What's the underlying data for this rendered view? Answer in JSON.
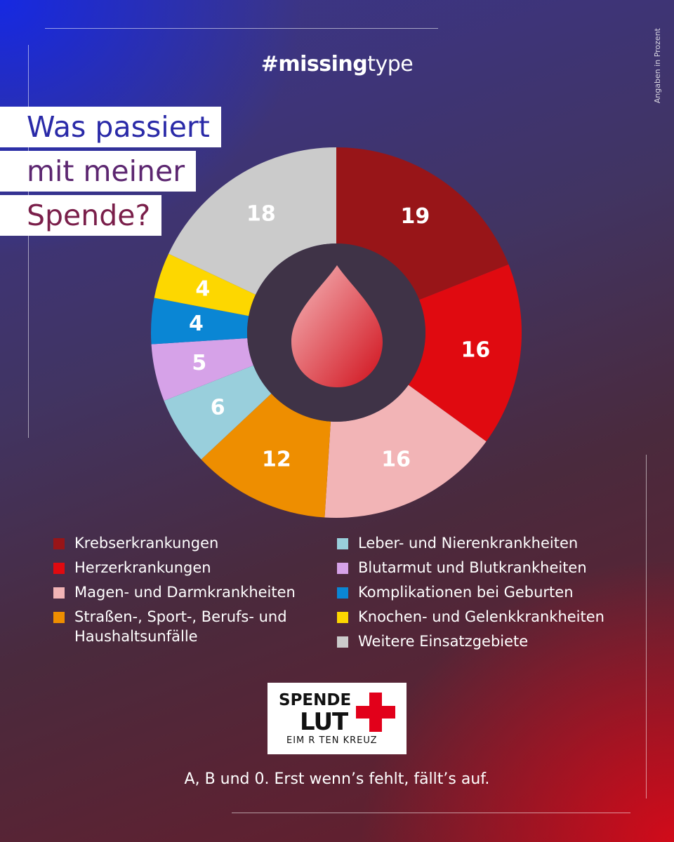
{
  "header": {
    "hashtag_bold": "#missing",
    "hashtag_light": "type",
    "side_note": "Angaben in Prozent"
  },
  "title": {
    "line1": "Was passiert",
    "line2": "mit meiner",
    "line3": "Spende?"
  },
  "chart_data": {
    "type": "pie",
    "donut": true,
    "center_icon": "blood-drop-icon",
    "categories": [
      "Krebserkrankungen",
      "Herzerkrankungen",
      "Magen- und Darmkrankheiten",
      "Straßen-, Sport-, Berufs- und Haushaltsunfälle",
      "Leber- und Nierenkrankheiten",
      "Blutarmut und Blutkrankheiten",
      "Komplikationen bei Geburten",
      "Knochen- und Gelenkkrankheiten",
      "Weitere Einsatzgebiete"
    ],
    "values": [
      19,
      16,
      16,
      12,
      6,
      5,
      4,
      4,
      18
    ],
    "colors": [
      "#981518",
      "#e00a10",
      "#f2b4b6",
      "#ee8e00",
      "#99cfdc",
      "#d6a2e8",
      "#0a86d4",
      "#fdd700",
      "#cbcbcb"
    ]
  },
  "legend": {
    "left": [
      {
        "label_index": 0,
        "color": "#981518"
      },
      {
        "label_index": 1,
        "color": "#e00a10"
      },
      {
        "label_index": 2,
        "color": "#f2b4b6"
      },
      {
        "label_index": 3,
        "color": "#ee8e00"
      }
    ],
    "right": [
      {
        "label_index": 4,
        "color": "#99cfdc"
      },
      {
        "label_index": 5,
        "color": "#d6a2e8"
      },
      {
        "label_index": 6,
        "color": "#0a86d4"
      },
      {
        "label_index": 7,
        "color": "#fdd700"
      },
      {
        "label_index": 8,
        "color": "#cbcbcb"
      }
    ]
  },
  "logo": {
    "line1": "SPENDE",
    "line2": "LUT",
    "line3": "EIM R   TEN KREUZ",
    "cross_color": "#e2001a"
  },
  "tagline": "A, B und 0. Erst wenn’s fehlt, fällt’s auf."
}
